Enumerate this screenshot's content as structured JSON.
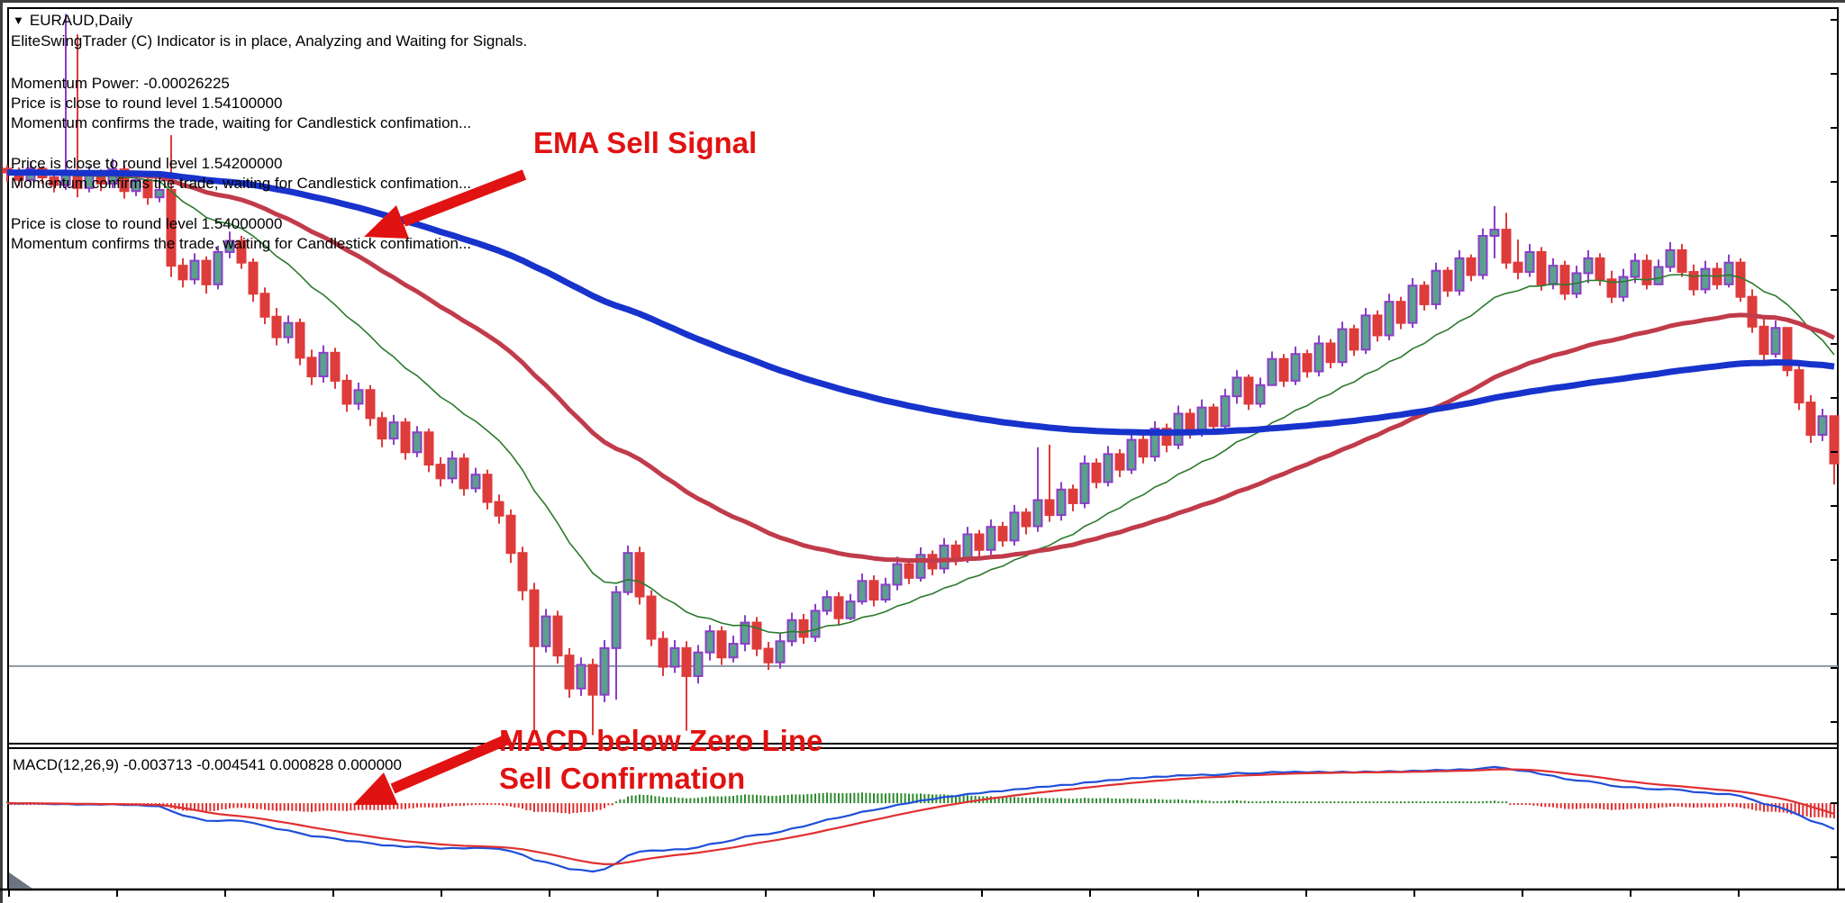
{
  "window": {
    "dropdown_icon": "▼",
    "symbol": "EURAUD,Daily"
  },
  "indicator_messages": {
    "status": "EliteSwingTrader (C) Indicator is in place, Analyzing and Waiting for Signals.",
    "momentum_power": "Momentum Power: -0.00026225",
    "blocks": [
      {
        "price_line": "Price is close to round level 1.54100000",
        "confirm_line": "Momentum confirms the trade, waiting for Candlestick confimation..."
      },
      {
        "price_line": "Price is close to round level 1.54200000",
        "confirm_line": "Momentum confirms the trade, waiting for Candlestick confimation..."
      },
      {
        "price_line": "Price is close to round level 1.54000000",
        "confirm_line": "Momentum confirms the trade, waiting for Candlestick confimation..."
      }
    ]
  },
  "annotations": {
    "ema": "EMA Sell Signal",
    "macd_1": "MACD below Zero Line",
    "macd_2": "Sell Confirmation",
    "color": "#e11212"
  },
  "macd_panel_label": "MACD(12,26,9) -0.003713 -0.004541 0.000828 0.000000",
  "chart_data": {
    "type": "candlestick+macd",
    "symbol": "EURAUD",
    "timeframe": "Daily",
    "price_axis_labels_visible": false,
    "time_axis_labels_visible": false,
    "round_levels_mentioned": [
      1.541,
      1.542,
      1.54
    ],
    "momentum_power": -0.00026225,
    "main": {
      "open_rule": "open equals previous close",
      "closes": [
        1.549,
        1.5478,
        1.5496,
        1.5482,
        1.547,
        1.5492,
        1.5465,
        1.5488,
        1.5472,
        1.5495,
        1.546,
        1.5478,
        1.545,
        1.5462,
        1.534,
        1.5318,
        1.5348,
        1.531,
        1.5362,
        1.538,
        1.5345,
        1.5295,
        1.5258,
        1.5225,
        1.5248,
        1.5192,
        1.5162,
        1.52,
        1.5155,
        1.5118,
        1.514,
        1.5095,
        1.5062,
        1.5088,
        1.504,
        1.5072,
        1.502,
        1.4998,
        1.503,
        1.4982,
        1.5004,
        1.496,
        1.4938,
        1.4878,
        1.4818,
        1.4728,
        1.4776,
        1.4713,
        1.466,
        1.4698,
        1.465,
        1.4725,
        1.4815,
        1.4878,
        1.4808,
        1.474,
        1.4695,
        1.4725,
        1.468,
        1.4718,
        1.4752,
        1.471,
        1.4732,
        1.4766,
        1.4724,
        1.4702,
        1.4736,
        1.477,
        1.4743,
        1.4785,
        1.4807,
        1.4773,
        1.48,
        1.4833,
        1.4803,
        1.4827,
        1.486,
        1.4838,
        1.4875,
        1.4853,
        1.489,
        1.4868,
        1.4908,
        1.4883,
        1.492,
        1.4898,
        1.4943,
        1.4921,
        1.4963,
        1.4939,
        1.498,
        1.4958,
        1.5022,
        1.4992,
        1.5037,
        1.5012,
        1.506,
        1.5033,
        1.5078,
        1.5052,
        1.5102,
        1.5075,
        1.5112,
        1.5082,
        1.513,
        1.516,
        1.5118,
        1.5148,
        1.519,
        1.5155,
        1.5198,
        1.517,
        1.5215,
        1.5185,
        1.5238,
        1.5205,
        1.526,
        1.5228,
        1.5282,
        1.5248,
        1.5308,
        1.5278,
        1.5332,
        1.53,
        1.5352,
        1.5325,
        1.5388,
        1.5398,
        1.5345,
        1.533,
        1.5362,
        1.531,
        1.534,
        1.5295,
        1.5328,
        1.5352,
        1.5318,
        1.529,
        1.5322,
        1.5348,
        1.531,
        1.5338,
        1.5365,
        1.533,
        1.5302,
        1.5335,
        1.531,
        1.5345,
        1.529,
        1.5242,
        1.5198,
        1.524,
        1.5172,
        1.512,
        1.5068,
        1.5098,
        1.5022
      ],
      "highs": [
        1.5502,
        1.5498,
        1.5508,
        1.55,
        1.549,
        1.5745,
        1.5712,
        1.55,
        1.5495,
        1.5512,
        1.5502,
        1.5488,
        1.5486,
        1.5478,
        1.555,
        1.5352,
        1.536,
        1.5355,
        1.5372,
        1.5395,
        1.5388,
        1.5352,
        1.5305,
        1.5272,
        1.526,
        1.5255,
        1.5205,
        1.5212,
        1.5208,
        1.5165,
        1.5152,
        1.5148,
        1.5105,
        1.51,
        1.5095,
        1.5082,
        1.5078,
        1.5032,
        1.5042,
        1.5038,
        1.5015,
        1.5012,
        1.4972,
        1.4948,
        1.4888,
        1.483,
        1.4788,
        1.4785,
        1.4725,
        1.471,
        1.4708,
        1.4738,
        1.4825,
        1.489,
        1.4888,
        1.4818,
        1.4752,
        1.4738,
        1.4736,
        1.473,
        1.4762,
        1.476,
        1.4745,
        1.4778,
        1.4775,
        1.4735,
        1.4748,
        1.4782,
        1.478,
        1.4796,
        1.4818,
        1.4815,
        1.4812,
        1.4845,
        1.4842,
        1.4838,
        1.4872,
        1.4868,
        1.4887,
        1.4882,
        1.4902,
        1.4898,
        1.492,
        1.4915,
        1.4932,
        1.4928,
        1.4955,
        1.495,
        1.5048,
        1.5052,
        1.4992,
        1.4988,
        1.5035,
        1.503,
        1.505,
        1.5045,
        1.5072,
        1.5068,
        1.509,
        1.5086,
        1.5115,
        1.511,
        1.5125,
        1.5118,
        1.5142,
        1.5172,
        1.5165,
        1.516,
        1.5202,
        1.5198,
        1.521,
        1.5205,
        1.5228,
        1.5222,
        1.525,
        1.5245,
        1.5272,
        1.5268,
        1.5295,
        1.529,
        1.532,
        1.5315,
        1.5345,
        1.5338,
        1.5365,
        1.5358,
        1.54,
        1.5436,
        1.5425,
        1.5382,
        1.5375,
        1.537,
        1.5352,
        1.5348,
        1.534,
        1.5365,
        1.536,
        1.5332,
        1.5335,
        1.536,
        1.5358,
        1.535,
        1.5378,
        1.5375,
        1.5342,
        1.5348,
        1.5345,
        1.5358,
        1.5352,
        1.5302,
        1.5255,
        1.5252,
        1.524,
        1.5185,
        1.5132,
        1.511,
        1.5092
      ],
      "lows": [
        1.5475,
        1.5468,
        1.547,
        1.5472,
        1.5458,
        1.5462,
        1.545,
        1.5458,
        1.546,
        1.5465,
        1.5448,
        1.5452,
        1.5438,
        1.5442,
        1.5322,
        1.5305,
        1.531,
        1.5295,
        1.5302,
        1.5352,
        1.5335,
        1.5282,
        1.5246,
        1.5212,
        1.5215,
        1.518,
        1.5148,
        1.5152,
        1.5142,
        1.5105,
        1.5108,
        1.5082,
        1.5048,
        1.5052,
        1.5028,
        1.5032,
        1.5008,
        1.4985,
        1.499,
        1.497,
        1.4975,
        1.4948,
        1.4925,
        1.4862,
        1.4802,
        1.459,
        1.4718,
        1.47,
        1.4645,
        1.4648,
        1.4585,
        1.4638,
        1.4642,
        1.481,
        1.4795,
        1.4728,
        1.468,
        1.4685,
        1.4592,
        1.4668,
        1.4705,
        1.4698,
        1.4702,
        1.472,
        1.4712,
        1.469,
        1.4692,
        1.4728,
        1.4732,
        1.4735,
        1.4778,
        1.4762,
        1.477,
        1.4795,
        1.4792,
        1.4798,
        1.4818,
        1.4828,
        1.4832,
        1.4842,
        1.4845,
        1.4858,
        1.4862,
        1.4872,
        1.4875,
        1.4888,
        1.489,
        1.4908,
        1.4912,
        1.4928,
        1.493,
        1.4945,
        1.495,
        1.4982,
        1.4985,
        1.5,
        1.5005,
        1.5022,
        1.5025,
        1.504,
        1.5045,
        1.5062,
        1.5065,
        1.5072,
        1.5075,
        1.5118,
        1.5108,
        1.5112,
        1.5148,
        1.5145,
        1.5148,
        1.516,
        1.5162,
        1.5175,
        1.5178,
        1.5195,
        1.5198,
        1.5218,
        1.522,
        1.5238,
        1.524,
        1.5268,
        1.527,
        1.529,
        1.5292,
        1.5315,
        1.5318,
        1.5352,
        1.5335,
        1.5318,
        1.5322,
        1.53,
        1.5302,
        1.5285,
        1.5288,
        1.5312,
        1.5308,
        1.528,
        1.5282,
        1.5312,
        1.5302,
        1.5328,
        1.533,
        1.5322,
        1.5292,
        1.5295,
        1.5302,
        1.5305,
        1.5282,
        1.5232,
        1.5188,
        1.5192,
        1.5162,
        1.5108,
        1.5055,
        1.5058,
        1.4988
      ],
      "overlays": [
        {
          "name": "EMA fast",
          "period": 16,
          "color": "#2c7a2c",
          "width": 1.6
        },
        {
          "name": "EMA medium",
          "period": 45,
          "color": "#c13b4a",
          "width": 5
        },
        {
          "name": "EMA slow",
          "period": 130,
          "color": "#1733cc",
          "width": 7
        }
      ],
      "level_line": {
        "price": 1.4696,
        "color": "#8c98a4"
      },
      "candle_colors": {
        "bear": "#de3b3b",
        "bull_border": "#8a3fc6",
        "bull_fill": "#5ba08e"
      }
    },
    "macd": {
      "params": [
        12,
        26,
        9
      ],
      "current_values": {
        "macd": -0.003713,
        "signal": -0.004541,
        "osma": 0.000828,
        "level": 0.0
      },
      "colors": {
        "macd_line": "#1f4fd8",
        "signal_line": "#e03030",
        "hist_up": "#2e8b2e",
        "hist_down": "#e03030"
      }
    }
  }
}
